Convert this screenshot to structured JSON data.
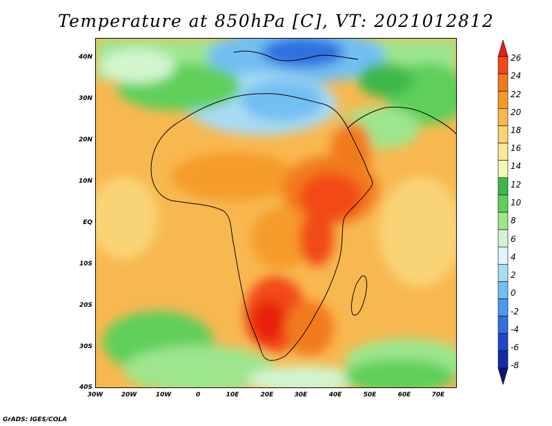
{
  "title": "Temperature at 850hPa [C], VT: 2021012812",
  "footer": "GrADS: IGES/COLA",
  "map": {
    "lat_labels": [
      "40N",
      "30N",
      "20N",
      "10N",
      "EQ",
      "10S",
      "20S",
      "30S",
      "40S"
    ],
    "lon_labels": [
      "30W",
      "20W",
      "10W",
      "0",
      "10E",
      "20E",
      "30E",
      "40E",
      "50E",
      "60E",
      "70E"
    ]
  },
  "colorbar": {
    "labels": [
      "26",
      "24",
      "22",
      "20",
      "18",
      "16",
      "14",
      "12",
      "10",
      "8",
      "6",
      "4",
      "2",
      "0",
      "-2",
      "-4",
      "-6",
      "-8"
    ],
    "colors": [
      "#e8200e",
      "#f24a16",
      "#f27a1c",
      "#f59b2a",
      "#f8b850",
      "#f9d476",
      "#fae99a",
      "#f6f8b8",
      "#3cb84a",
      "#5ecf5a",
      "#9de68e",
      "#d2f5cf",
      "#dff5fa",
      "#a8dcf5",
      "#72bff2",
      "#4a9bee",
      "#2f6fe0",
      "#1f46c9",
      "#152aa3",
      "#0c1770"
    ]
  }
}
